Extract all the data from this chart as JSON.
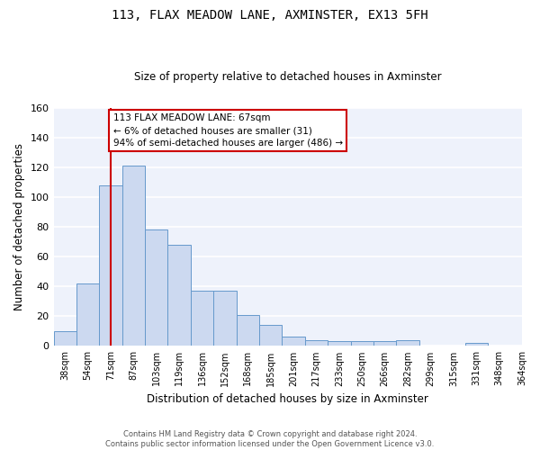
{
  "title1": "113, FLAX MEADOW LANE, AXMINSTER, EX13 5FH",
  "title2": "Size of property relative to detached houses in Axminster",
  "xlabel": "Distribution of detached houses by size in Axminster",
  "ylabel": "Number of detached properties",
  "bar_values": [
    10,
    42,
    108,
    121,
    78,
    68,
    37,
    37,
    21,
    14,
    6,
    4,
    3,
    3,
    3,
    4,
    0,
    0,
    2,
    0
  ],
  "bin_labels": [
    "38sqm",
    "54sqm",
    "71sqm",
    "87sqm",
    "103sqm",
    "119sqm",
    "136sqm",
    "152sqm",
    "168sqm",
    "185sqm",
    "201sqm",
    "217sqm",
    "233sqm",
    "250sqm",
    "266sqm",
    "282sqm",
    "299sqm",
    "315sqm",
    "331sqm",
    "348sqm",
    "364sqm"
  ],
  "bar_color": "#ccd9f0",
  "bar_edge_color": "#6699cc",
  "red_line_x": 2.5,
  "annotation_text": "113 FLAX MEADOW LANE: 67sqm\n← 6% of detached houses are smaller (31)\n94% of semi-detached houses are larger (486) →",
  "annotation_box_color": "#ffffff",
  "annotation_box_edge": "#cc0000",
  "footer1": "Contains HM Land Registry data © Crown copyright and database right 2024.",
  "footer2": "Contains public sector information licensed under the Open Government Licence v3.0.",
  "ylim": [
    0,
    160
  ],
  "yticks": [
    0,
    20,
    40,
    60,
    80,
    100,
    120,
    140,
    160
  ],
  "background_color": "#eef2fb",
  "fig_width": 6.0,
  "fig_height": 5.0,
  "dpi": 100
}
